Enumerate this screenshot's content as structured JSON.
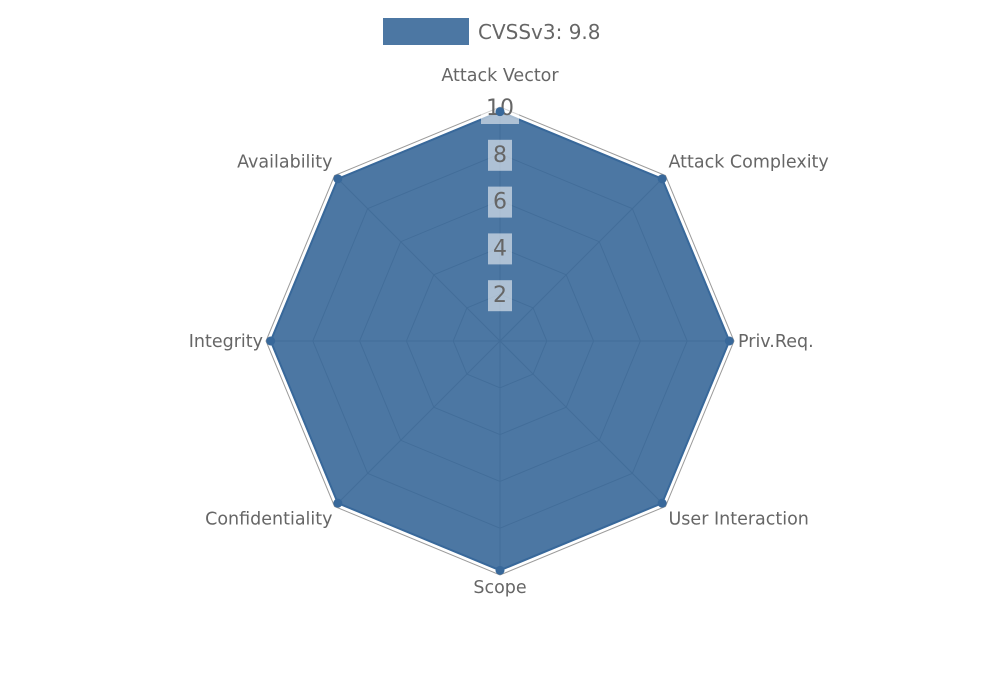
{
  "legend": {
    "position": "top"
  },
  "chart_data": {
    "type": "radar",
    "categories": [
      "Attack Vector",
      "Attack Complexity",
      "Priv.Req.",
      "User Interaction",
      "Scope",
      "Confidentiality",
      "Integrity",
      "Availability"
    ],
    "series": [
      {
        "name": "CVSSv3: 9.8",
        "values": [
          9.8,
          9.8,
          9.8,
          9.8,
          9.8,
          9.8,
          9.8,
          9.8
        ]
      }
    ],
    "r_axis": {
      "min": 0,
      "max": 10,
      "ticks": [
        2,
        4,
        6,
        8,
        10
      ]
    },
    "grid": true,
    "legend_position": "top",
    "colors": {
      "series_fill": "rgba(57,104,153,0.9)",
      "series_stroke": "#38689a",
      "point_fill": "#38689a",
      "grid_line": "#9b9b9b",
      "axis_label_text": "#666666",
      "tick_text": "#666666",
      "tick_backdrop": "rgba(255,255,255,0.55)",
      "background": "#ffffff"
    }
  }
}
